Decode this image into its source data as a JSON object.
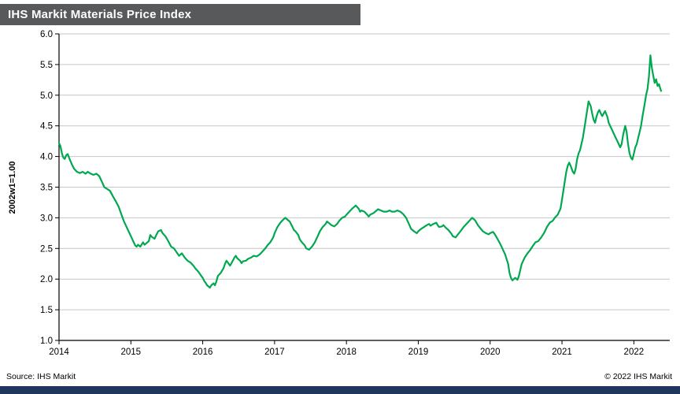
{
  "header": {
    "title": "IHS Markit Materials Price Index"
  },
  "footer": {
    "source": "Source: IHS Markit",
    "copyright": "© 2022 IHS Markit"
  },
  "colors": {
    "header_bar": "#58595b",
    "footer_bar": "#21365c",
    "line": "#00a84f",
    "grid": "#c6c6c6",
    "axis": "#000000"
  },
  "chart_data": {
    "type": "line",
    "title": "IHS Markit Materials Price Index",
    "xlabel": "",
    "ylabel": "2002w1=1.00",
    "ylim": [
      1.0,
      6.0
    ],
    "xlim": [
      2014,
      2022.5
    ],
    "grid": "horizontal",
    "legend": "none",
    "line_color": "#00a84f",
    "y_ticks": [
      {
        "v": 1.0,
        "label": "1.0"
      },
      {
        "v": 1.5,
        "label": "1.5"
      },
      {
        "v": 2.0,
        "label": "2.0"
      },
      {
        "v": 2.5,
        "label": "2.5"
      },
      {
        "v": 3.0,
        "label": "3.0"
      },
      {
        "v": 3.5,
        "label": "3.5"
      },
      {
        "v": 4.0,
        "label": "4.0"
      },
      {
        "v": 4.5,
        "label": "4.5"
      },
      {
        "v": 5.0,
        "label": "5.0"
      },
      {
        "v": 5.5,
        "label": "5.5"
      },
      {
        "v": 6.0,
        "label": "6.0"
      }
    ],
    "x_ticks": [
      {
        "v": 2014,
        "label": "2014"
      },
      {
        "v": 2015,
        "label": "2015"
      },
      {
        "v": 2016,
        "label": "2016"
      },
      {
        "v": 2017,
        "label": "2017"
      },
      {
        "v": 2018,
        "label": "2018"
      },
      {
        "v": 2019,
        "label": "2019"
      },
      {
        "v": 2020,
        "label": "2020"
      },
      {
        "v": 2021,
        "label": "2021"
      },
      {
        "v": 2022,
        "label": "2022"
      }
    ],
    "series": [
      {
        "name": "Materials Price Index (2002w1=1.00)",
        "points": [
          [
            2014.0,
            4.22
          ],
          [
            2014.02,
            4.17
          ],
          [
            2014.04,
            4.05
          ],
          [
            2014.06,
            3.98
          ],
          [
            2014.08,
            3.96
          ],
          [
            2014.1,
            4.02
          ],
          [
            2014.12,
            4.04
          ],
          [
            2014.15,
            3.95
          ],
          [
            2014.18,
            3.87
          ],
          [
            2014.21,
            3.8
          ],
          [
            2014.25,
            3.75
          ],
          [
            2014.29,
            3.73
          ],
          [
            2014.33,
            3.75
          ],
          [
            2014.37,
            3.72
          ],
          [
            2014.4,
            3.75
          ],
          [
            2014.44,
            3.72
          ],
          [
            2014.48,
            3.7
          ],
          [
            2014.52,
            3.72
          ],
          [
            2014.56,
            3.68
          ],
          [
            2014.6,
            3.58
          ],
          [
            2014.63,
            3.5
          ],
          [
            2014.67,
            3.47
          ],
          [
            2014.71,
            3.44
          ],
          [
            2014.75,
            3.35
          ],
          [
            2014.79,
            3.27
          ],
          [
            2014.83,
            3.18
          ],
          [
            2014.87,
            3.05
          ],
          [
            2014.9,
            2.95
          ],
          [
            2014.94,
            2.85
          ],
          [
            2014.98,
            2.75
          ],
          [
            2015.0,
            2.7
          ],
          [
            2015.04,
            2.6
          ],
          [
            2015.06,
            2.55
          ],
          [
            2015.08,
            2.53
          ],
          [
            2015.1,
            2.56
          ],
          [
            2015.13,
            2.53
          ],
          [
            2015.17,
            2.6
          ],
          [
            2015.19,
            2.56
          ],
          [
            2015.21,
            2.58
          ],
          [
            2015.25,
            2.62
          ],
          [
            2015.27,
            2.72
          ],
          [
            2015.29,
            2.69
          ],
          [
            2015.33,
            2.66
          ],
          [
            2015.35,
            2.71
          ],
          [
            2015.38,
            2.78
          ],
          [
            2015.42,
            2.8
          ],
          [
            2015.44,
            2.75
          ],
          [
            2015.48,
            2.7
          ],
          [
            2015.52,
            2.62
          ],
          [
            2015.56,
            2.53
          ],
          [
            2015.6,
            2.5
          ],
          [
            2015.63,
            2.45
          ],
          [
            2015.67,
            2.38
          ],
          [
            2015.71,
            2.42
          ],
          [
            2015.75,
            2.35
          ],
          [
            2015.79,
            2.3
          ],
          [
            2015.83,
            2.27
          ],
          [
            2015.87,
            2.22
          ],
          [
            2015.9,
            2.17
          ],
          [
            2015.94,
            2.12
          ],
          [
            2015.98,
            2.05
          ],
          [
            2016.0,
            2.02
          ],
          [
            2016.02,
            1.97
          ],
          [
            2016.04,
            1.94
          ],
          [
            2016.06,
            1.9
          ],
          [
            2016.08,
            1.88
          ],
          [
            2016.1,
            1.86
          ],
          [
            2016.12,
            1.9
          ],
          [
            2016.15,
            1.93
          ],
          [
            2016.17,
            1.9
          ],
          [
            2016.19,
            1.96
          ],
          [
            2016.21,
            2.05
          ],
          [
            2016.25,
            2.1
          ],
          [
            2016.29,
            2.18
          ],
          [
            2016.31,
            2.25
          ],
          [
            2016.33,
            2.3
          ],
          [
            2016.35,
            2.27
          ],
          [
            2016.38,
            2.22
          ],
          [
            2016.4,
            2.26
          ],
          [
            2016.44,
            2.35
          ],
          [
            2016.46,
            2.38
          ],
          [
            2016.48,
            2.34
          ],
          [
            2016.52,
            2.3
          ],
          [
            2016.54,
            2.26
          ],
          [
            2016.56,
            2.29
          ],
          [
            2016.6,
            2.3
          ],
          [
            2016.63,
            2.33
          ],
          [
            2016.67,
            2.35
          ],
          [
            2016.71,
            2.38
          ],
          [
            2016.75,
            2.37
          ],
          [
            2016.79,
            2.4
          ],
          [
            2016.83,
            2.45
          ],
          [
            2016.87,
            2.5
          ],
          [
            2016.9,
            2.55
          ],
          [
            2016.94,
            2.6
          ],
          [
            2016.98,
            2.68
          ],
          [
            2017.0,
            2.75
          ],
          [
            2017.04,
            2.85
          ],
          [
            2017.08,
            2.92
          ],
          [
            2017.12,
            2.97
          ],
          [
            2017.15,
            3.0
          ],
          [
            2017.17,
            2.98
          ],
          [
            2017.21,
            2.94
          ],
          [
            2017.25,
            2.85
          ],
          [
            2017.27,
            2.8
          ],
          [
            2017.29,
            2.78
          ],
          [
            2017.33,
            2.72
          ],
          [
            2017.35,
            2.65
          ],
          [
            2017.38,
            2.6
          ],
          [
            2017.42,
            2.55
          ],
          [
            2017.44,
            2.5
          ],
          [
            2017.48,
            2.48
          ],
          [
            2017.52,
            2.53
          ],
          [
            2017.56,
            2.6
          ],
          [
            2017.6,
            2.7
          ],
          [
            2017.63,
            2.78
          ],
          [
            2017.67,
            2.85
          ],
          [
            2017.71,
            2.9
          ],
          [
            2017.73,
            2.94
          ],
          [
            2017.75,
            2.92
          ],
          [
            2017.79,
            2.88
          ],
          [
            2017.83,
            2.86
          ],
          [
            2017.87,
            2.9
          ],
          [
            2017.9,
            2.95
          ],
          [
            2017.94,
            3.0
          ],
          [
            2017.98,
            3.02
          ],
          [
            2018.0,
            3.05
          ],
          [
            2018.04,
            3.1
          ],
          [
            2018.08,
            3.15
          ],
          [
            2018.1,
            3.17
          ],
          [
            2018.13,
            3.2
          ],
          [
            2018.17,
            3.15
          ],
          [
            2018.19,
            3.1
          ],
          [
            2018.21,
            3.12
          ],
          [
            2018.25,
            3.1
          ],
          [
            2018.29,
            3.05
          ],
          [
            2018.31,
            3.02
          ],
          [
            2018.33,
            3.05
          ],
          [
            2018.38,
            3.08
          ],
          [
            2018.42,
            3.12
          ],
          [
            2018.44,
            3.14
          ],
          [
            2018.48,
            3.12
          ],
          [
            2018.52,
            3.1
          ],
          [
            2018.56,
            3.1
          ],
          [
            2018.6,
            3.12
          ],
          [
            2018.63,
            3.1
          ],
          [
            2018.67,
            3.1
          ],
          [
            2018.71,
            3.12
          ],
          [
            2018.75,
            3.1
          ],
          [
            2018.79,
            3.06
          ],
          [
            2018.83,
            3.0
          ],
          [
            2018.87,
            2.9
          ],
          [
            2018.9,
            2.82
          ],
          [
            2018.94,
            2.78
          ],
          [
            2018.98,
            2.75
          ],
          [
            2019.0,
            2.78
          ],
          [
            2019.04,
            2.82
          ],
          [
            2019.08,
            2.85
          ],
          [
            2019.12,
            2.88
          ],
          [
            2019.15,
            2.9
          ],
          [
            2019.17,
            2.87
          ],
          [
            2019.21,
            2.9
          ],
          [
            2019.25,
            2.92
          ],
          [
            2019.27,
            2.88
          ],
          [
            2019.29,
            2.85
          ],
          [
            2019.33,
            2.86
          ],
          [
            2019.35,
            2.88
          ],
          [
            2019.38,
            2.84
          ],
          [
            2019.42,
            2.8
          ],
          [
            2019.46,
            2.74
          ],
          [
            2019.48,
            2.7
          ],
          [
            2019.52,
            2.68
          ],
          [
            2019.56,
            2.74
          ],
          [
            2019.6,
            2.8
          ],
          [
            2019.63,
            2.85
          ],
          [
            2019.67,
            2.9
          ],
          [
            2019.71,
            2.95
          ],
          [
            2019.75,
            3.0
          ],
          [
            2019.79,
            2.96
          ],
          [
            2019.83,
            2.88
          ],
          [
            2019.87,
            2.82
          ],
          [
            2019.9,
            2.78
          ],
          [
            2019.94,
            2.75
          ],
          [
            2019.98,
            2.73
          ],
          [
            2020.0,
            2.75
          ],
          [
            2020.04,
            2.77
          ],
          [
            2020.06,
            2.74
          ],
          [
            2020.08,
            2.7
          ],
          [
            2020.12,
            2.62
          ],
          [
            2020.15,
            2.55
          ],
          [
            2020.17,
            2.5
          ],
          [
            2020.21,
            2.4
          ],
          [
            2020.25,
            2.25
          ],
          [
            2020.27,
            2.1
          ],
          [
            2020.29,
            2.02
          ],
          [
            2020.31,
            1.98
          ],
          [
            2020.33,
            2.0
          ],
          [
            2020.35,
            2.02
          ],
          [
            2020.38,
            1.99
          ],
          [
            2020.4,
            2.05
          ],
          [
            2020.42,
            2.15
          ],
          [
            2020.44,
            2.25
          ],
          [
            2020.46,
            2.3
          ],
          [
            2020.48,
            2.35
          ],
          [
            2020.52,
            2.42
          ],
          [
            2020.56,
            2.48
          ],
          [
            2020.6,
            2.55
          ],
          [
            2020.63,
            2.6
          ],
          [
            2020.67,
            2.62
          ],
          [
            2020.71,
            2.68
          ],
          [
            2020.75,
            2.75
          ],
          [
            2020.79,
            2.85
          ],
          [
            2020.83,
            2.92
          ],
          [
            2020.87,
            2.95
          ],
          [
            2020.9,
            3.0
          ],
          [
            2020.94,
            3.05
          ],
          [
            2020.98,
            3.15
          ],
          [
            2021.0,
            3.3
          ],
          [
            2021.02,
            3.45
          ],
          [
            2021.04,
            3.6
          ],
          [
            2021.06,
            3.75
          ],
          [
            2021.08,
            3.85
          ],
          [
            2021.1,
            3.9
          ],
          [
            2021.12,
            3.85
          ],
          [
            2021.15,
            3.75
          ],
          [
            2021.17,
            3.72
          ],
          [
            2021.19,
            3.8
          ],
          [
            2021.21,
            3.95
          ],
          [
            2021.23,
            4.05
          ],
          [
            2021.25,
            4.1
          ],
          [
            2021.27,
            4.2
          ],
          [
            2021.29,
            4.3
          ],
          [
            2021.31,
            4.45
          ],
          [
            2021.33,
            4.6
          ],
          [
            2021.35,
            4.75
          ],
          [
            2021.37,
            4.9
          ],
          [
            2021.4,
            4.82
          ],
          [
            2021.42,
            4.7
          ],
          [
            2021.44,
            4.6
          ],
          [
            2021.46,
            4.55
          ],
          [
            2021.48,
            4.65
          ],
          [
            2021.5,
            4.72
          ],
          [
            2021.52,
            4.76
          ],
          [
            2021.54,
            4.7
          ],
          [
            2021.56,
            4.66
          ],
          [
            2021.58,
            4.7
          ],
          [
            2021.6,
            4.74
          ],
          [
            2021.63,
            4.65
          ],
          [
            2021.65,
            4.55
          ],
          [
            2021.67,
            4.5
          ],
          [
            2021.69,
            4.45
          ],
          [
            2021.71,
            4.4
          ],
          [
            2021.73,
            4.35
          ],
          [
            2021.75,
            4.3
          ],
          [
            2021.77,
            4.25
          ],
          [
            2021.79,
            4.2
          ],
          [
            2021.81,
            4.15
          ],
          [
            2021.83,
            4.2
          ],
          [
            2021.85,
            4.35
          ],
          [
            2021.87,
            4.45
          ],
          [
            2021.88,
            4.5
          ],
          [
            2021.9,
            4.4
          ],
          [
            2021.92,
            4.2
          ],
          [
            2021.94,
            4.05
          ],
          [
            2021.96,
            3.98
          ],
          [
            2021.98,
            3.95
          ],
          [
            2022.0,
            4.05
          ],
          [
            2022.02,
            4.15
          ],
          [
            2022.04,
            4.2
          ],
          [
            2022.06,
            4.3
          ],
          [
            2022.08,
            4.4
          ],
          [
            2022.1,
            4.5
          ],
          [
            2022.12,
            4.65
          ],
          [
            2022.15,
            4.85
          ],
          [
            2022.17,
            5.0
          ],
          [
            2022.19,
            5.1
          ],
          [
            2022.21,
            5.3
          ],
          [
            2022.23,
            5.65
          ],
          [
            2022.25,
            5.45
          ],
          [
            2022.27,
            5.32
          ],
          [
            2022.29,
            5.2
          ],
          [
            2022.31,
            5.26
          ],
          [
            2022.33,
            5.15
          ],
          [
            2022.35,
            5.18
          ],
          [
            2022.37,
            5.1
          ],
          [
            2022.38,
            5.07
          ]
        ]
      }
    ]
  }
}
